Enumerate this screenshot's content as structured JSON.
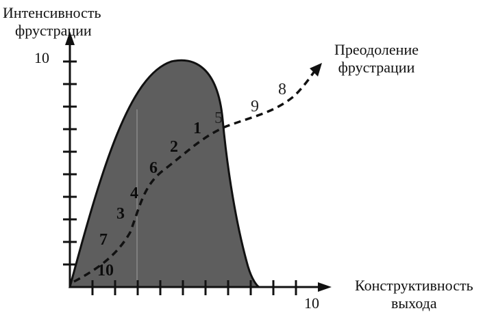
{
  "diagram": {
    "y_axis_label_line1": "Интенсивность",
    "y_axis_label_line2": "фрустрации",
    "y_axis_max_label": "10",
    "x_axis_label_line1": "Конструктивность",
    "x_axis_label_line2": "выхода",
    "x_axis_max_label": "10",
    "arrow_label_line1": "Преодоление",
    "arrow_label_line2": "фрустрации",
    "path_markers": [
      "10",
      "7",
      "3",
      "4",
      "6",
      "2",
      "1",
      "5",
      "9",
      "8"
    ],
    "colors": {
      "fill": "#5a5a5a",
      "ink": "#111111",
      "paper": "#ffffff"
    }
  }
}
